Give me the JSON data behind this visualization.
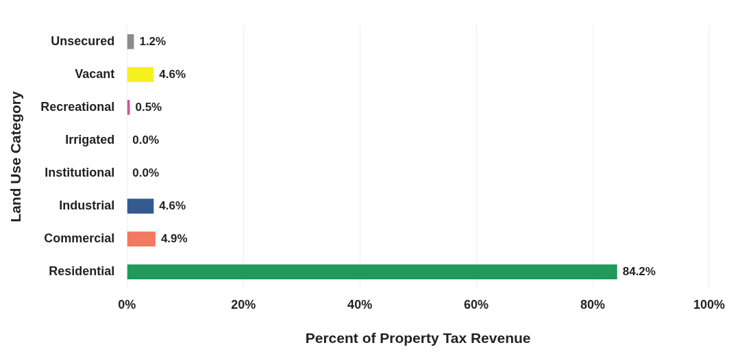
{
  "chart_data": {
    "type": "bar",
    "orientation": "horizontal",
    "xlabel": "Percent of Property Tax Revenue",
    "ylabel": "Land Use Category",
    "categories": [
      "Unsecured",
      "Vacant",
      "Recreational",
      "Irrigated",
      "Institutional",
      "Industrial",
      "Commercial",
      "Residential"
    ],
    "values": [
      1.2,
      4.6,
      0.5,
      0.0,
      0.0,
      4.6,
      4.9,
      84.2
    ],
    "value_labels": [
      "1.2%",
      "4.6%",
      "0.5%",
      "0.0%",
      "0.0%",
      "4.6%",
      "4.9%",
      "84.2%"
    ],
    "colors": [
      "#8c8c8c",
      "#f5f01e",
      "#d84f9a",
      "#d0505a",
      "#7a5aa8",
      "#355a93",
      "#f27a5e",
      "#1f9a5c"
    ],
    "xlim": [
      0,
      100
    ],
    "xticks": [
      {
        "value": 0,
        "label": "0%"
      },
      {
        "value": 20,
        "label": "20%"
      },
      {
        "value": 40,
        "label": "40%"
      },
      {
        "value": 60,
        "label": "60%"
      },
      {
        "value": 80,
        "label": "80%"
      },
      {
        "value": 100,
        "label": "100%"
      }
    ],
    "grid": "x",
    "legend": false
  }
}
